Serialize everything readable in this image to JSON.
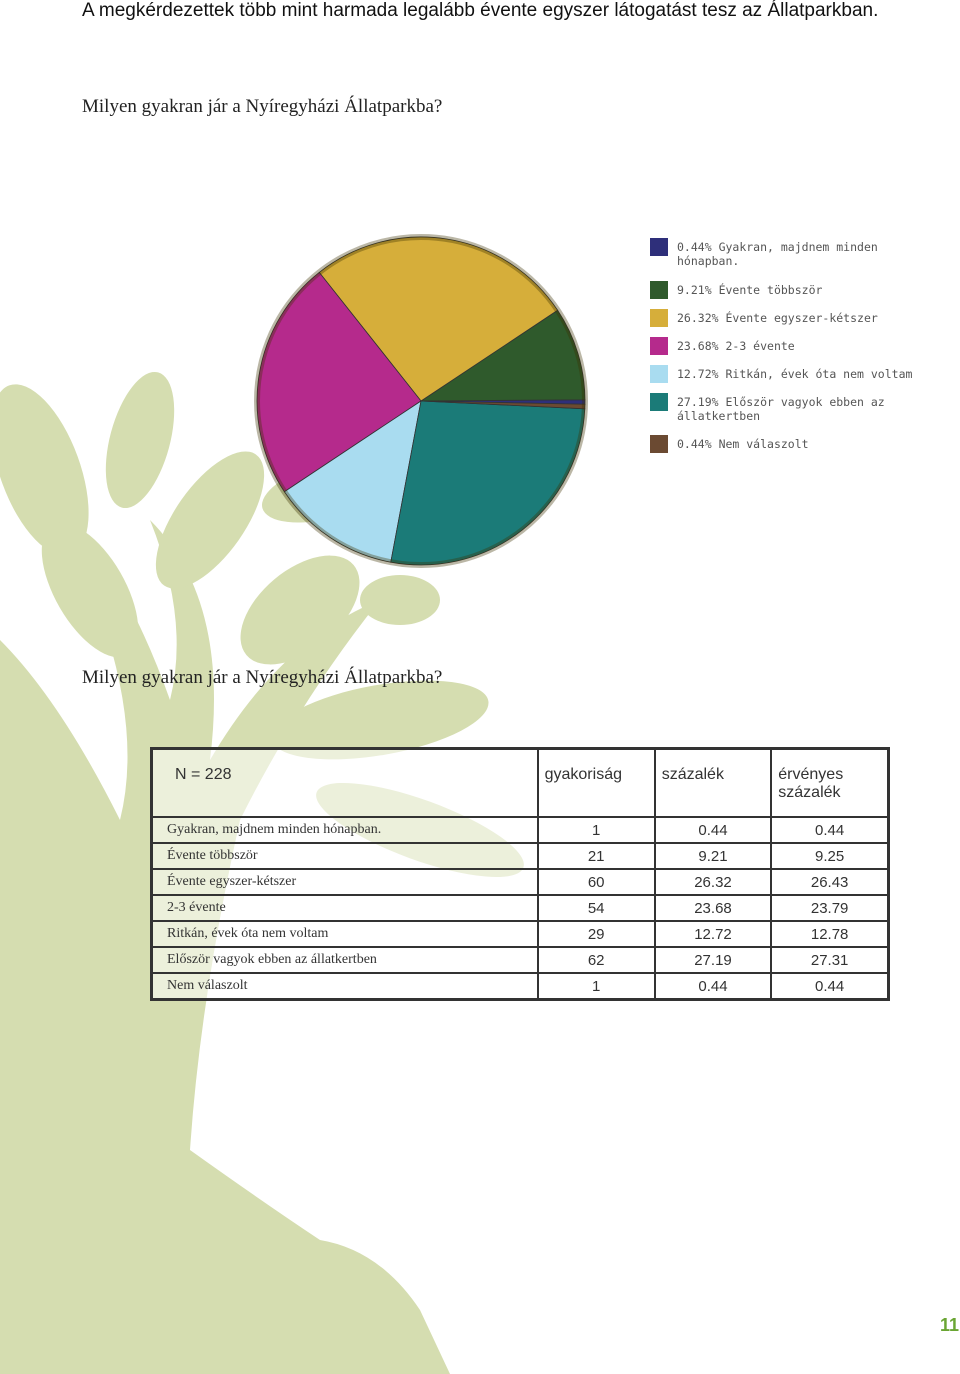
{
  "header": {
    "title": "A megkérdezettek több mint harmada legalább évente egyszer  látogatást tesz az Állatparkban."
  },
  "chart_data": {
    "type": "pie",
    "title": "Milyen gyakran jár a Nyíregyházi Állatparkba?",
    "categories": [
      "Gyakran, majdnem minden hónapban.",
      "Évente többször",
      "Évente egyszer-kétszer",
      "2-3 évente",
      "Ritkán, évek óta nem voltam",
      "Először vagyok ebben az állatkertben",
      "Nem válaszolt"
    ],
    "values": [
      0.44,
      9.21,
      26.32,
      23.68,
      12.72,
      27.19,
      0.44
    ],
    "value_labels": [
      "0.44%",
      "9.21%",
      "26.32%",
      "23.68%",
      "12.72%",
      "27.19%",
      "0.44%"
    ],
    "colors": [
      "#2e2f7a",
      "#2f5a2c",
      "#d6ae3a",
      "#b52a8c",
      "#a9dcf0",
      "#1b7b78",
      "#6b4a32"
    ]
  },
  "table": {
    "title": "Milyen gyakran jár a Nyíregyházi Állatparkba?",
    "header": [
      "N = 228",
      "gyakoriság",
      "százalék",
      "érvényes százalék"
    ],
    "rows": [
      [
        "Gyakran, majdnem minden hónapban.",
        1,
        0.44,
        0.44
      ],
      [
        "Évente többször",
        21,
        9.21,
        9.25
      ],
      [
        "Évente egyszer-kétszer",
        60,
        26.32,
        26.43
      ],
      [
        "2-3 évente",
        54,
        23.68,
        23.79
      ],
      [
        "Ritkán, évek óta nem voltam",
        29,
        12.72,
        12.78
      ],
      [
        "Először vagyok ebben az állatkertben",
        62,
        27.19,
        27.31
      ],
      [
        "Nem válaszolt",
        1,
        0.44,
        0.44
      ]
    ]
  },
  "page_number": "11"
}
